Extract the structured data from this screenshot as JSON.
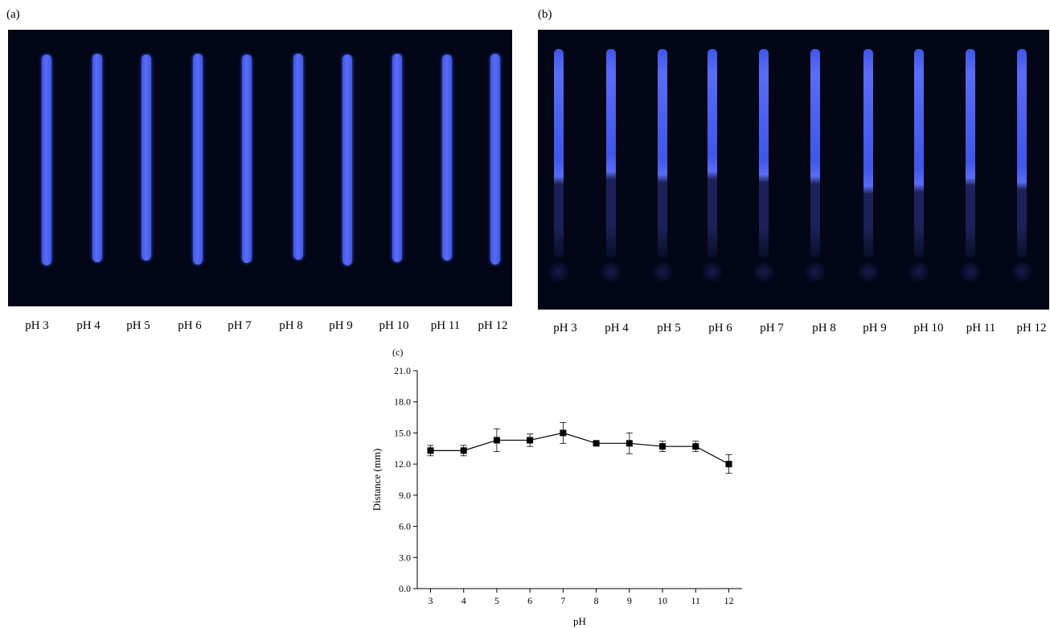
{
  "panel_a": {
    "label": "(a)",
    "lanes": [
      "pH 3",
      "pH 4",
      "pH 5",
      "pH 6",
      "pH 7",
      "pH 8",
      "pH 9",
      "pH 10",
      "pH 11",
      "pH 12"
    ]
  },
  "panel_b": {
    "label": "(b)",
    "lanes": [
      "pH 3",
      "pH 4",
      "pH 5",
      "pH 6",
      "pH 7",
      "pH 8",
      "pH 9",
      "pH 10",
      "pH 11",
      "pH 12"
    ]
  },
  "colors": {
    "photo_background": "#020617",
    "strip_blue": "#3f56e8",
    "strip_glow": "#5b6cf5",
    "strip_faint": "#1c2259",
    "spot": "#1a1a4a"
  },
  "chart_data": {
    "type": "line",
    "panel_label": "(c)",
    "title": "",
    "xlabel": "pH",
    "ylabel": "Distance (mm)",
    "x": [
      3,
      4,
      5,
      6,
      7,
      8,
      9,
      10,
      11,
      12
    ],
    "y": [
      13.3,
      13.3,
      14.3,
      14.3,
      15.0,
      14.0,
      14.0,
      13.7,
      13.7,
      12.0
    ],
    "yerr": [
      0.5,
      0.5,
      1.1,
      0.6,
      1.0,
      0.1,
      1.0,
      0.5,
      0.5,
      0.9
    ],
    "xlim": [
      2.6,
      12.4
    ],
    "ylim": [
      0,
      21
    ],
    "xticks": [
      3,
      4,
      5,
      6,
      7,
      8,
      9,
      10,
      11,
      12
    ],
    "yticks": [
      "0.0",
      "3.0",
      "6.0",
      "9.0",
      "12.0",
      "15.0",
      "18.0",
      "21.0"
    ],
    "marker": "square",
    "grid": false,
    "legend": false
  }
}
